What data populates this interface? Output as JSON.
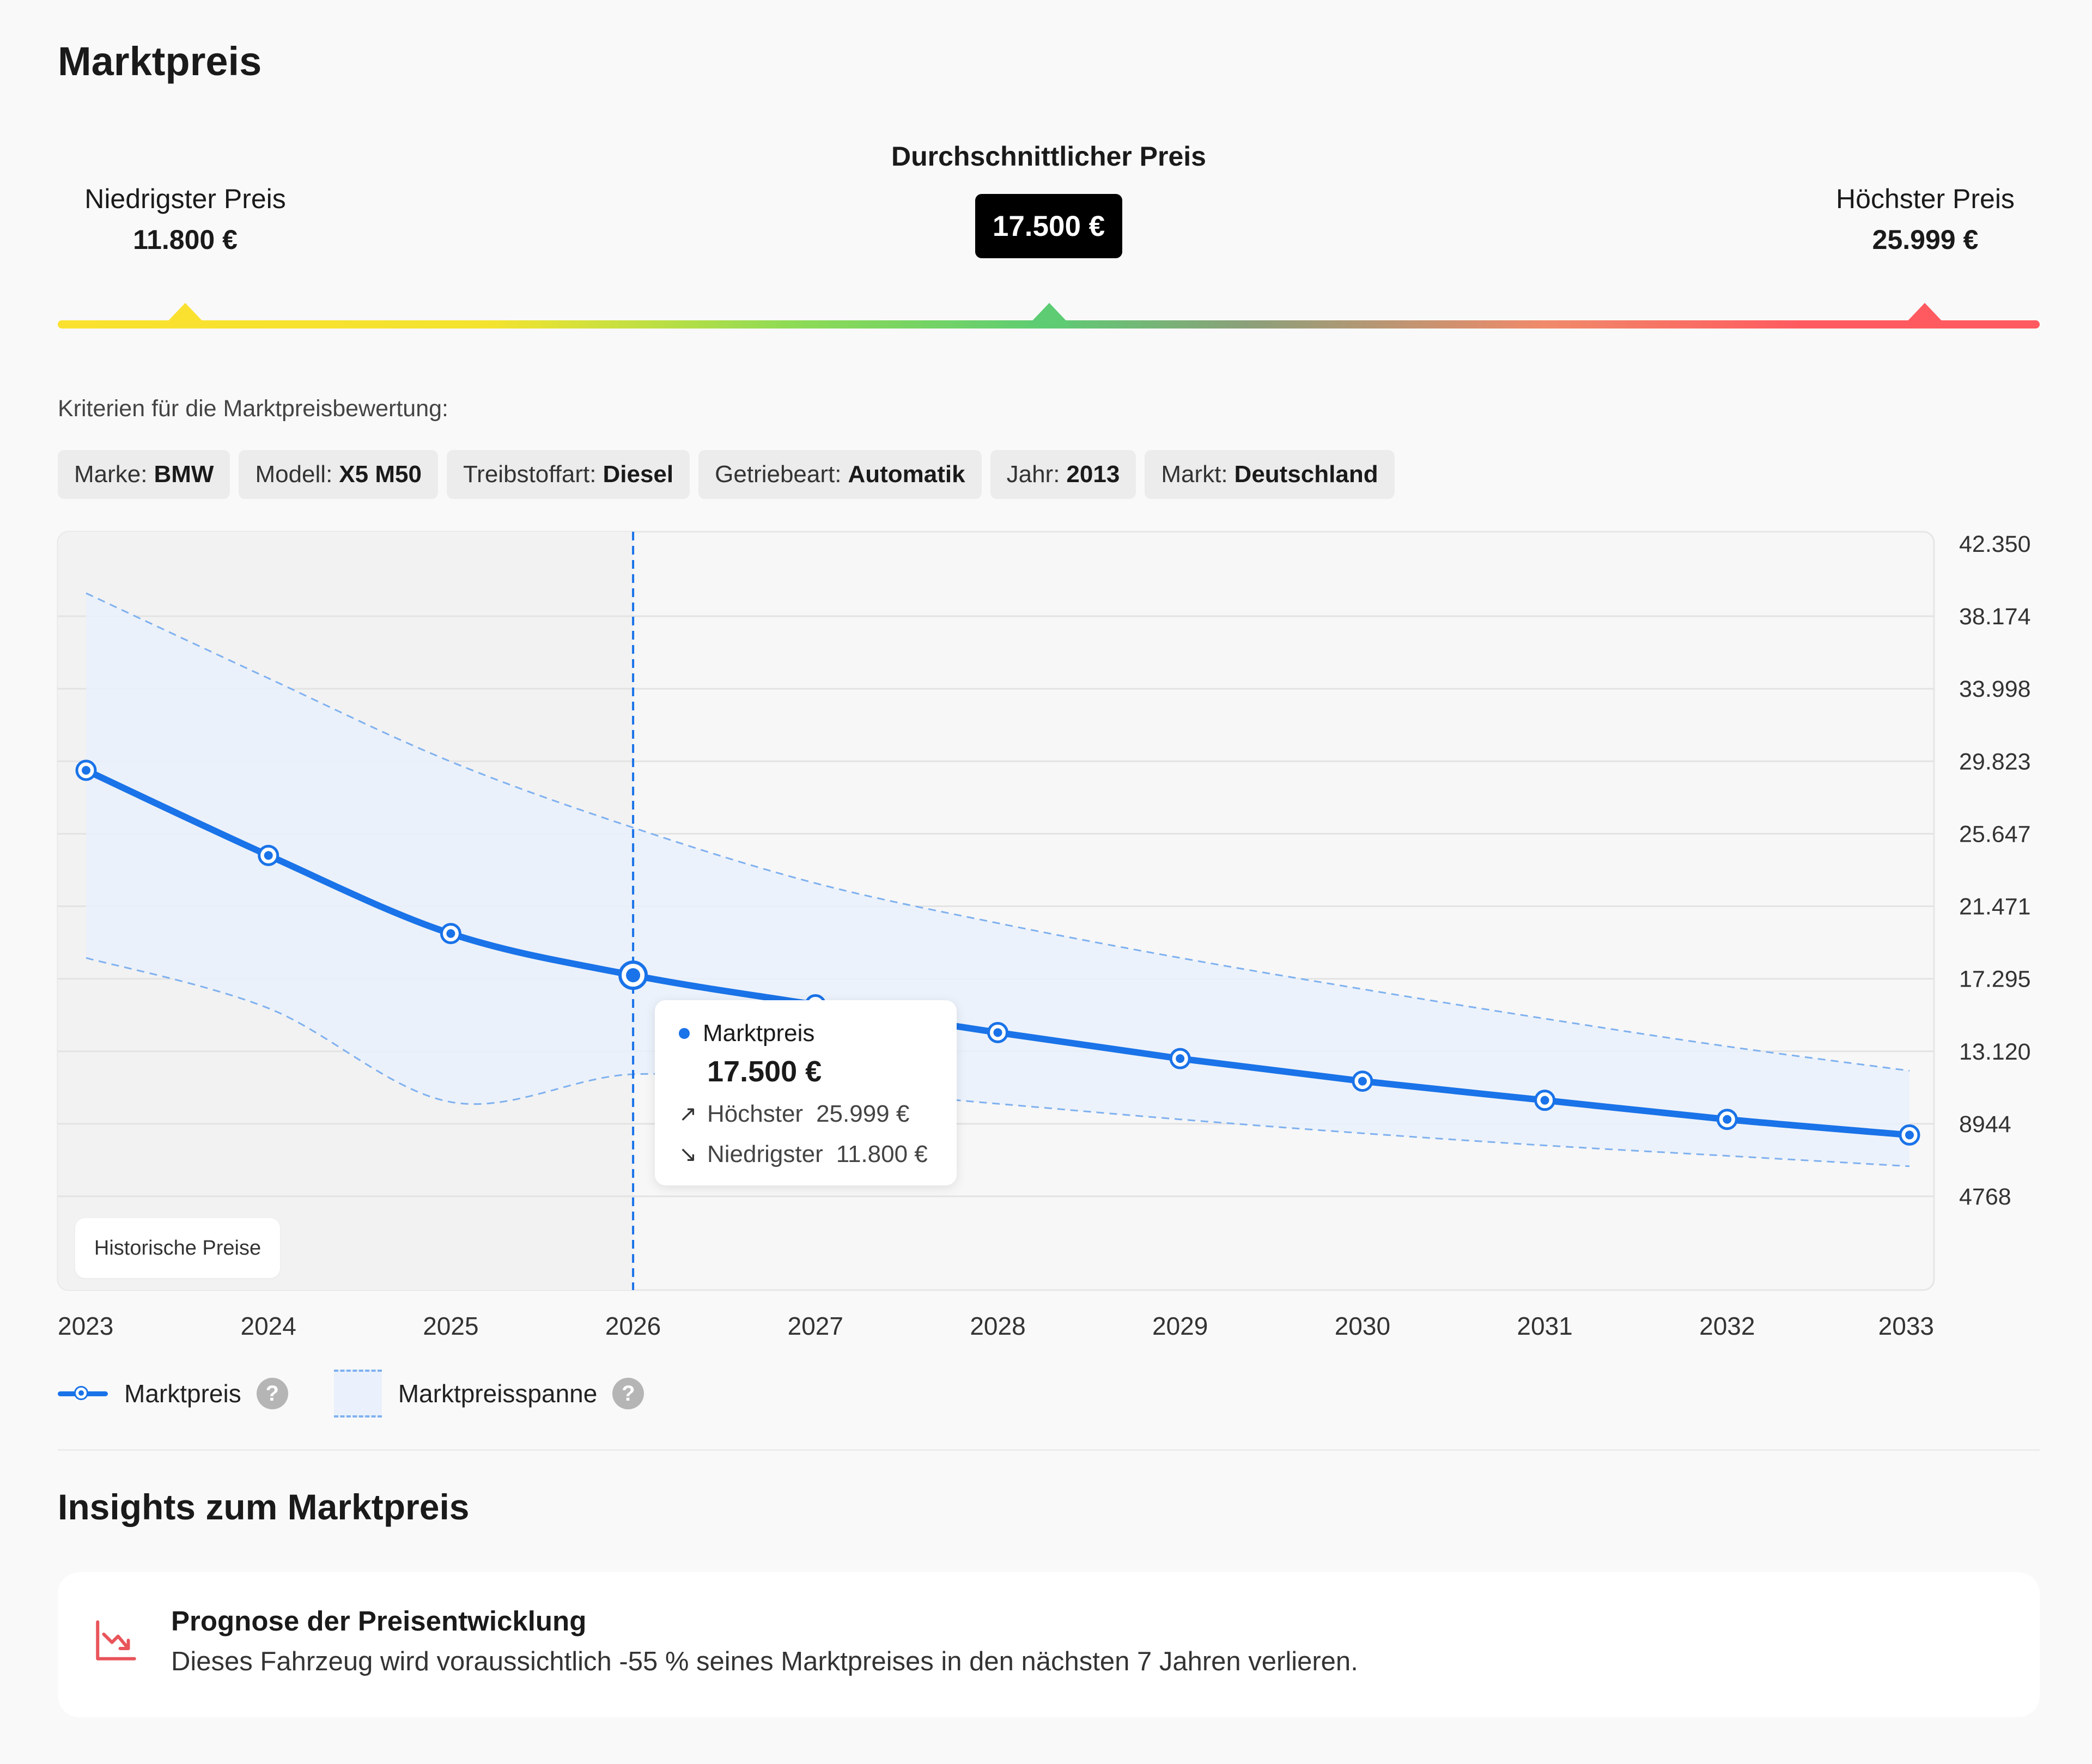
{
  "title": "Marktpreis",
  "price_bar": {
    "avg_label": "Durchschnittlicher Preis",
    "avg_value": "17.500 €",
    "low_label": "Niedrigster Preis",
    "low_value": "11.800 €",
    "high_label": "Höchster Preis",
    "high_value": "25.999 €"
  },
  "criteria": {
    "title": "Kriterien für die Marktpreisbewertung:",
    "chips": [
      {
        "label": "Marke:",
        "value": "BMW"
      },
      {
        "label": "Modell:",
        "value": "X5 M50"
      },
      {
        "label": "Treibstoffart:",
        "value": "Diesel"
      },
      {
        "label": "Getriebeart:",
        "value": "Automatik"
      },
      {
        "label": "Jahr:",
        "value": "2013"
      },
      {
        "label": "Markt:",
        "value": "Deutschland"
      }
    ]
  },
  "historical_label": "Historische Preise",
  "tooltip": {
    "series": "Marktpreis",
    "value": "17.500 €",
    "high_label": "Höchster",
    "high_value": "25.999 €",
    "low_label": "Niedrigster",
    "low_value": "11.800 €"
  },
  "legend": {
    "line_label": "Marktpreis",
    "area_label": "Marktpreisspanne",
    "help": "?"
  },
  "insights": {
    "title": "Insights zum Marktpreis",
    "card_title": "Prognose der Preisentwicklung",
    "card_text": "Dieses Fahrzeug wird voraussichtlich -55 % seines Marktpreises in den nächsten 7 Jahren verlieren."
  },
  "colors": {
    "line": "#1a73e8",
    "band": "#eaf1fc",
    "band_border": "#7fb1f0",
    "history_bg": "#f2f2f2",
    "current_year": "#1a73e8"
  },
  "chart_data": {
    "type": "line",
    "x": [
      "2023",
      "2024",
      "2025",
      "2026",
      "2027",
      "2028",
      "2029",
      "2030",
      "2031",
      "2032",
      "2033"
    ],
    "current_year": "2026",
    "historical_until": "2026",
    "y_ticks": [
      "42.350",
      "38.174",
      "33.998",
      "29.823",
      "25.647",
      "21.471",
      "17.295",
      "13.120",
      "8944",
      "4768"
    ],
    "ylim": [
      4768,
      42350
    ],
    "grid": true,
    "y_axis_side": "right",
    "series": [
      {
        "name": "Marktpreis",
        "values": [
          29300,
          24400,
          19900,
          17500,
          15800,
          14200,
          12700,
          11400,
          10300,
          9200,
          8300
        ]
      }
    ],
    "range": {
      "name": "Marktpreisspanne",
      "upper": [
        39500,
        34600,
        29800,
        25999,
        22800,
        20500,
        18500,
        16700,
        15000,
        13400,
        12000
      ],
      "lower": [
        18500,
        15600,
        10200,
        11800,
        11000,
        10100,
        9200,
        8400,
        7700,
        7100,
        6500
      ]
    }
  }
}
